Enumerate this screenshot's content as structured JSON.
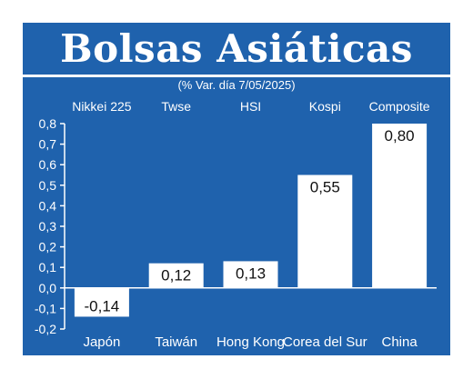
{
  "title": "Bolsas Asiáticas",
  "subtitle": "(% Var. día 7/05/2025)",
  "colors": {
    "background": "#1f62ad",
    "bar": "#ffffff",
    "text": "#ffffff",
    "grid": "#ffffff"
  },
  "chart_data": {
    "type": "bar",
    "title": "Bolsas Asiáticas",
    "subtitle": "(% Var. día 7/05/2025)",
    "categories": [
      "Japón",
      "Taiwán",
      "Hong Kong",
      "Corea del Sur",
      "China"
    ],
    "index_names": [
      "Nikkei 225",
      "Twse",
      "HSI",
      "Kospi",
      "Composite"
    ],
    "values": [
      -0.14,
      0.12,
      0.13,
      0.55,
      0.8
    ],
    "value_labels": [
      "-0,14",
      "0,12",
      "0,13",
      "0,55",
      "0,80"
    ],
    "ylim": [
      -0.2,
      0.8
    ],
    "y_ticks": [
      "0,8",
      "0,7",
      "0,6",
      "0,5",
      "0,4",
      "0,3",
      "0,2",
      "0,1",
      "0,0",
      "-0,1",
      "-0,2"
    ],
    "y_tick_values": [
      0.8,
      0.7,
      0.6,
      0.5,
      0.4,
      0.3,
      0.2,
      0.1,
      0.0,
      -0.1,
      -0.2
    ],
    "grid": false,
    "xlabel": "",
    "ylabel": ""
  }
}
